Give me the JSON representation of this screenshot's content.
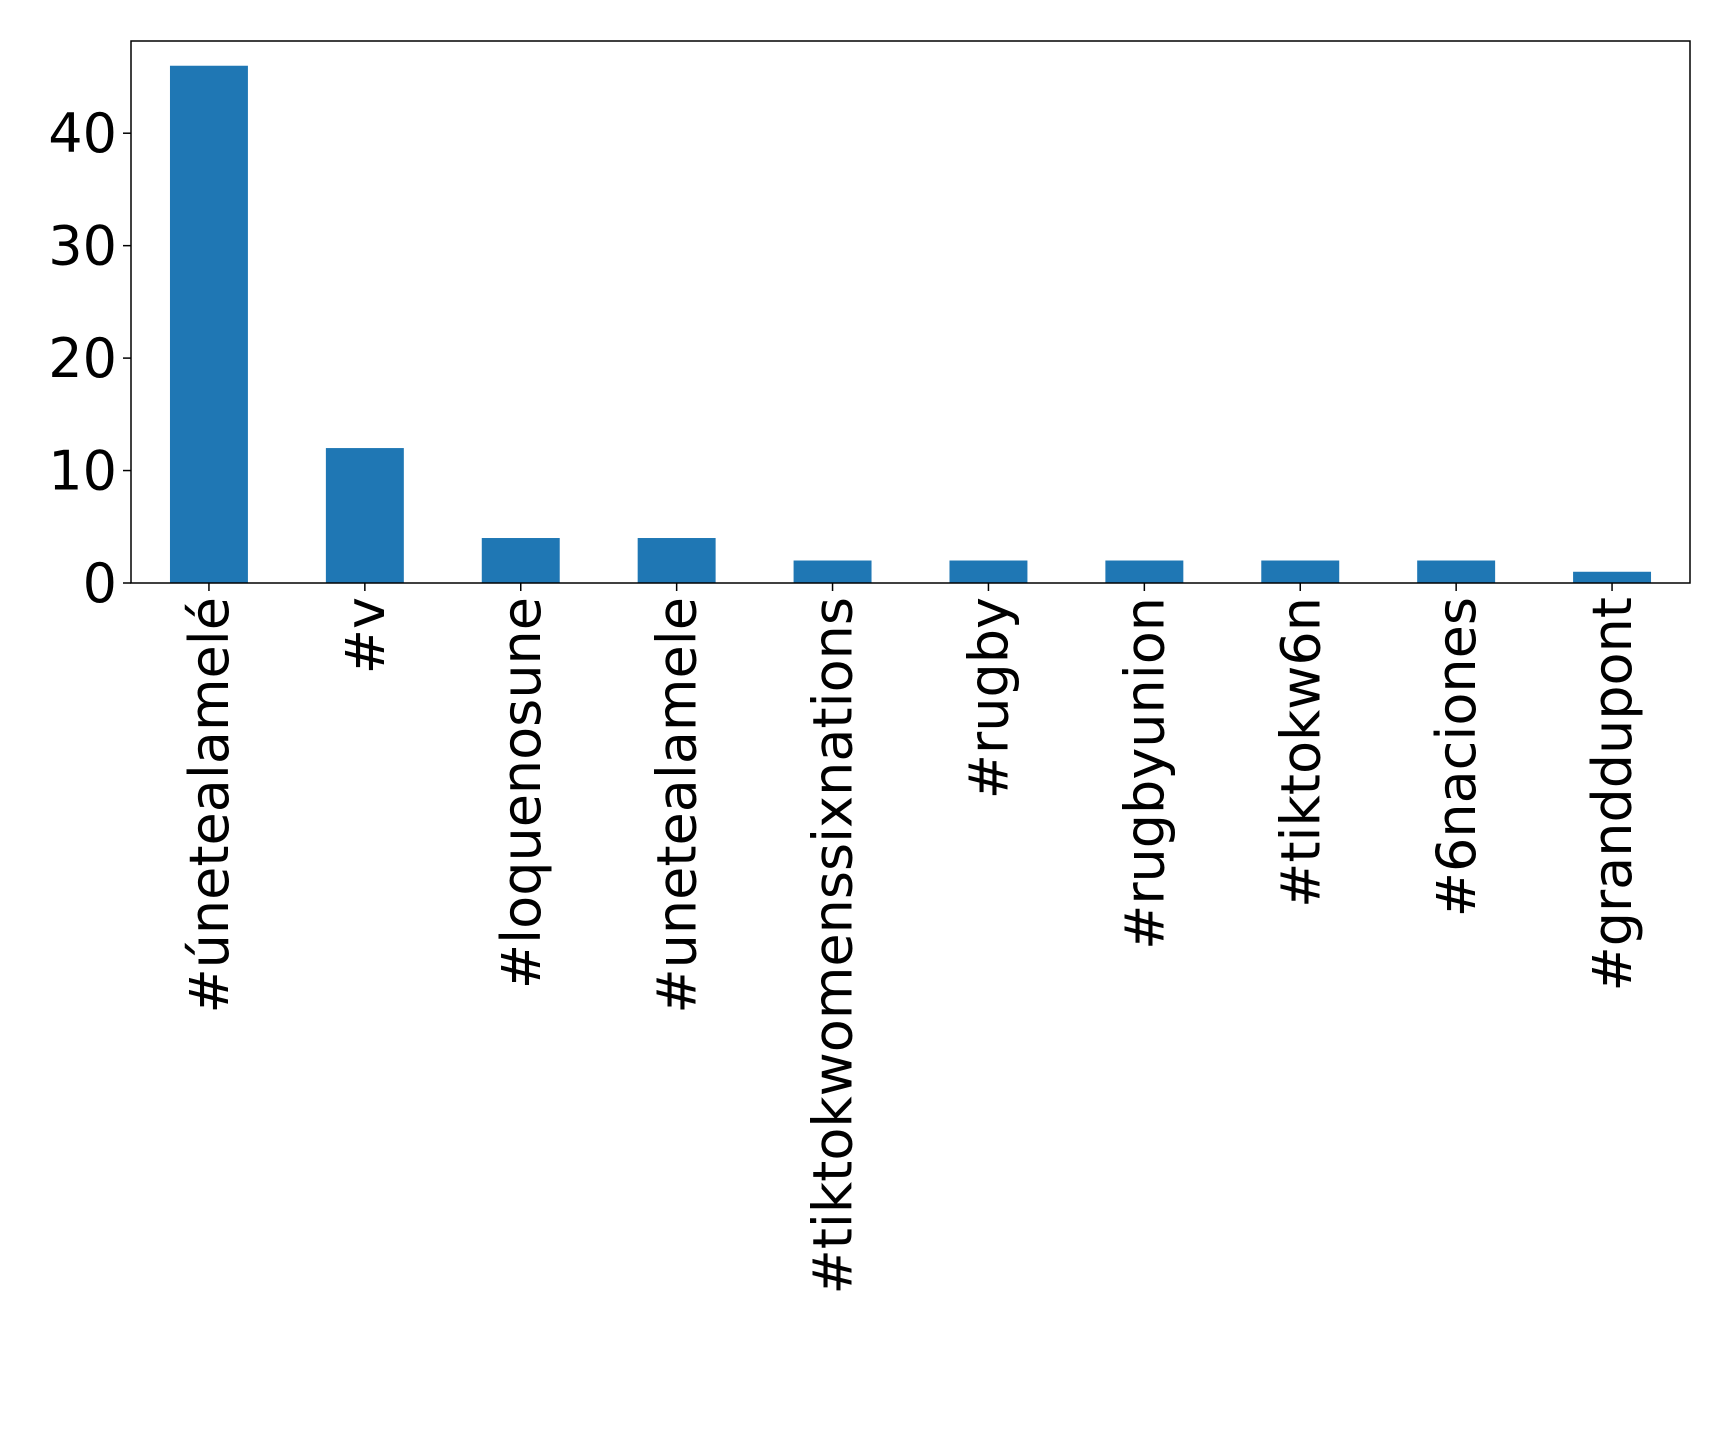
{
  "chart_data": {
    "type": "bar",
    "title": "",
    "xlabel": "",
    "ylabel": "",
    "categories": [
      "#únetealamelé",
      "#v",
      "#loquenosune",
      "#unetealamele",
      "#tiktokwomenssixnations",
      "#rugby",
      "#rugbyunion",
      "#tiktokw6n",
      "#6naciones",
      "#granddupont"
    ],
    "values": [
      46,
      12,
      4,
      4,
      2,
      2,
      2,
      2,
      2,
      1
    ],
    "yticks": [
      0,
      10,
      20,
      30,
      40
    ],
    "ylim": [
      0,
      48.2
    ],
    "grid": false,
    "legend": "none",
    "colors": {
      "bar": "#1f77b4",
      "axis": "#000000",
      "background": "#ffffff"
    }
  }
}
